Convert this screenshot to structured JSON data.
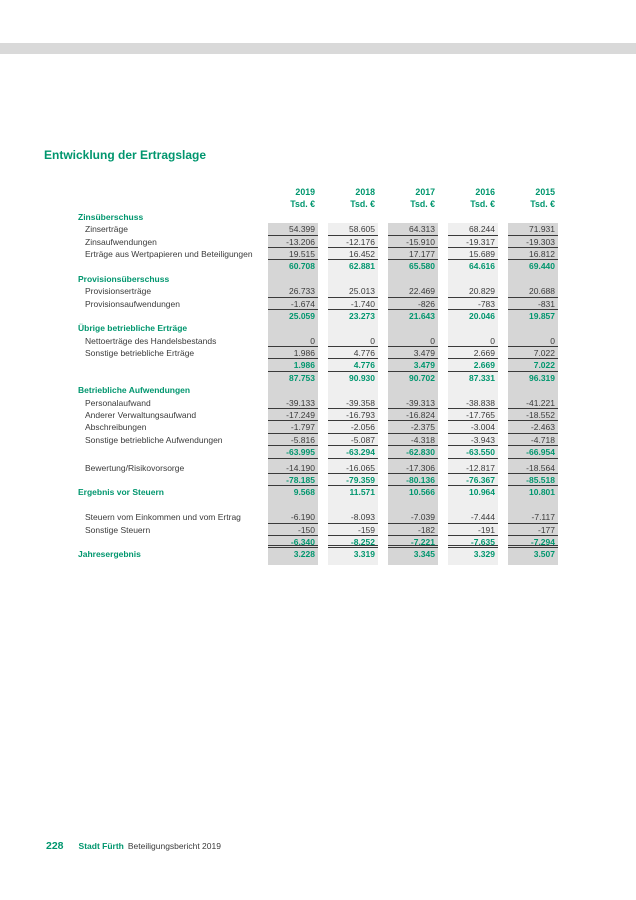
{
  "title": "Entwicklung der Ertragslage",
  "colors": {
    "accent_green": "#00966E",
    "stripe_dark": "#d6d6d6",
    "stripe_light": "#efefef",
    "rule": "#3a3a3a",
    "top_bar_gray": "#d9d9d9"
  },
  "footer": {
    "page_number": "228",
    "publisher": "Stadt Fürth",
    "report": "Beteiligungsbericht 2019"
  },
  "chart_data": {
    "type": "table",
    "title": "Entwicklung der Ertragslage",
    "unit_label": "Tsd. €",
    "years": [
      "2019",
      "2018",
      "2017",
      "2016",
      "2015"
    ],
    "rows": [
      {
        "type": "section",
        "label": "Zinsüberschuss",
        "values": null,
        "underline": false
      },
      {
        "type": "data",
        "label": "Zinserträge",
        "values": [
          "54.399",
          "58.605",
          "64.313",
          "68.244",
          "71.931"
        ],
        "underline": true
      },
      {
        "type": "data",
        "label": "Zinsaufwendungen",
        "values": [
          "-13.206",
          "-12.176",
          "-15.910",
          "-19.317",
          "-19.303"
        ],
        "underline": true
      },
      {
        "type": "data",
        "label": "Erträge aus Wertpapieren und Beteiligungen",
        "values": [
          "19.515",
          "16.452",
          "17.177",
          "15.689",
          "16.812"
        ],
        "underline": true
      },
      {
        "type": "total",
        "label": "",
        "values": [
          "60.708",
          "62.881",
          "65.580",
          "64.616",
          "69.440"
        ],
        "underline": false
      },
      {
        "type": "section",
        "label": "Provisionsüberschuss",
        "values": null,
        "underline": false
      },
      {
        "type": "data",
        "label": "Provisionserträge",
        "values": [
          "26.733",
          "25.013",
          "22.469",
          "20.829",
          "20.688"
        ],
        "underline": true
      },
      {
        "type": "data",
        "label": "Provisionsaufwendungen",
        "values": [
          "-1.674",
          "-1.740",
          "-826",
          "-783",
          "-831"
        ],
        "underline": true
      },
      {
        "type": "total",
        "label": "",
        "values": [
          "25.059",
          "23.273",
          "21.643",
          "20.046",
          "19.857"
        ],
        "underline": false
      },
      {
        "type": "section",
        "label": "Übrige betriebliche Erträge",
        "values": null,
        "underline": false
      },
      {
        "type": "data",
        "label": "Nettoerträge des Handelsbestands",
        "values": [
          "0",
          "0",
          "0",
          "0",
          "0"
        ],
        "underline": true
      },
      {
        "type": "data",
        "label": "Sonstige betriebliche Erträge",
        "values": [
          "1.986",
          "4.776",
          "3.479",
          "2.669",
          "7.022"
        ],
        "underline": true
      },
      {
        "type": "total",
        "label": "",
        "values": [
          "1.986",
          "4.776",
          "3.479",
          "2.669",
          "7.022"
        ],
        "underline": true
      },
      {
        "type": "total",
        "label": "",
        "values": [
          "87.753",
          "90.930",
          "90.702",
          "87.331",
          "96.319"
        ],
        "underline": false
      },
      {
        "type": "section",
        "label": "Betriebliche Aufwendungen",
        "values": null,
        "underline": false
      },
      {
        "type": "data",
        "label": "Personalaufwand",
        "values": [
          "-39.133",
          "-39.358",
          "-39.313",
          "-38.838",
          "-41.221"
        ],
        "underline": true
      },
      {
        "type": "data",
        "label": "Anderer Verwaltungsaufwand",
        "values": [
          "-17.249",
          "-16.793",
          "-16.824",
          "-17.765",
          "-18.552"
        ],
        "underline": true
      },
      {
        "type": "data",
        "label": "Abschreibungen",
        "values": [
          "-1.797",
          "-2.056",
          "-2.375",
          "-3.004",
          "-2.463"
        ],
        "underline": true
      },
      {
        "type": "data",
        "label": "Sonstige betriebliche Aufwendungen",
        "values": [
          "-5.816",
          "-5.087",
          "-4.318",
          "-3.943",
          "-4.718"
        ],
        "underline": true
      },
      {
        "type": "total",
        "label": "",
        "values": [
          "-63.995",
          "-63.294",
          "-62.830",
          "-63.550",
          "-66.954"
        ],
        "underline": true
      },
      {
        "type": "spacer-small",
        "label": "",
        "values": null,
        "underline": false
      },
      {
        "type": "data",
        "label": "Bewertung/Risikovorsorge",
        "values": [
          "-14.190",
          "-16.065",
          "-17.306",
          "-12.817",
          "-18.564"
        ],
        "underline": true
      },
      {
        "type": "total",
        "label": "",
        "values": [
          "-78.185",
          "-79.359",
          "-80.136",
          "-76.367",
          "-85.518"
        ],
        "underline": true
      },
      {
        "type": "result",
        "label": "Ergebnis vor Steuern",
        "values": [
          "9.568",
          "11.571",
          "10.566",
          "10.964",
          "10.801"
        ],
        "underline": false
      },
      {
        "type": "spacer",
        "label": "",
        "values": null,
        "underline": false
      },
      {
        "type": "data",
        "label": "Steuern vom Einkommen und vom Ertrag",
        "values": [
          "-6.190",
          "-8.093",
          "-7.039",
          "-7.444",
          "-7.117"
        ],
        "underline": true
      },
      {
        "type": "data",
        "label": "Sonstige Steuern",
        "values": [
          "-150",
          "-159",
          "-182",
          "-191",
          "-177"
        ],
        "underline": true
      },
      {
        "type": "total",
        "label": "",
        "values": [
          "-6.340",
          "-8.252",
          "-7.221",
          "-7.635",
          "-7.294"
        ],
        "underline": "double"
      },
      {
        "type": "result",
        "label": "Jahresergebnis",
        "values": [
          "3.228",
          "3.319",
          "3.345",
          "3.329",
          "3.507"
        ],
        "underline": false
      }
    ]
  }
}
